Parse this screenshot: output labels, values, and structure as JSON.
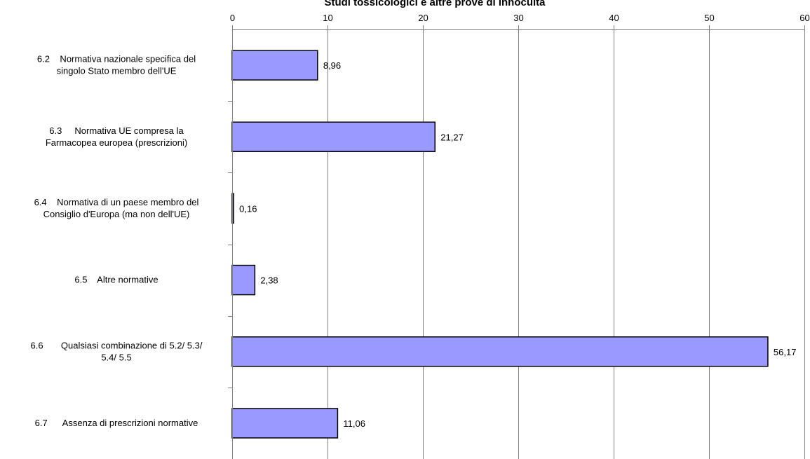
{
  "chart_data": {
    "type": "bar",
    "orientation": "horizontal",
    "title": "Studi tossicologici e altre prove di innocuità",
    "xlim": [
      0,
      60
    ],
    "x_ticks": [
      0,
      10,
      20,
      30,
      40,
      50,
      60
    ],
    "x_tick_labels": [
      "0",
      "10",
      "20",
      "30",
      "40",
      "50",
      "60"
    ],
    "x_axis_position": "top",
    "grid": "vertical",
    "categories": [
      [
        "6.2    Normativa nazionale specifica del",
        "singolo Stato membro dell'UE"
      ],
      [
        "6.3     Normativa UE compresa la",
        "Farmacopea europea (prescrizioni)"
      ],
      [
        "6.4    Normativa di un paese membro del",
        "Consiglio d'Europa (ma non dell'UE)"
      ],
      [
        "6.5    Altre normative"
      ],
      [
        "6.6       Qualsiasi combinazione di 5.2/ 5.3/",
        "5.4/ 5.5"
      ],
      [
        "6.7      Assenza di prescrizioni normative"
      ]
    ],
    "values": [
      8.96,
      21.27,
      0.16,
      2.38,
      56.17,
      11.06
    ],
    "value_labels": [
      "8,96",
      "21,27",
      "0,16",
      "2,38",
      "56,17",
      "11,06"
    ],
    "bar_color": "#9999ff",
    "bar_edge_color": "#000000",
    "grid_color": "#808080"
  }
}
